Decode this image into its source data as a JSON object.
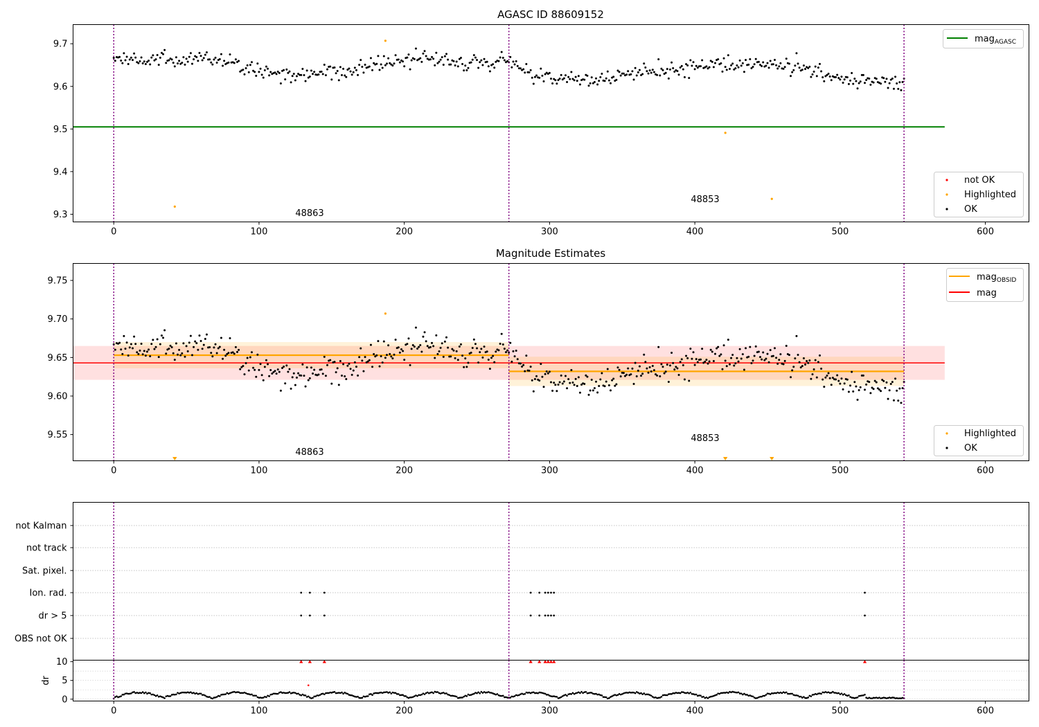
{
  "chart_data": [
    {
      "type": "scatter",
      "title": "AGASC ID 88609152",
      "xlim": [
        -28,
        630
      ],
      "ylim": [
        9.282,
        9.745
      ],
      "x_ticks": [
        0,
        100,
        200,
        300,
        400,
        500,
        600
      ],
      "y_ticks": [
        9.3,
        9.4,
        9.5,
        9.6,
        9.7
      ],
      "obs_boundaries": [
        0,
        272,
        544
      ],
      "observations": [
        {
          "obsid": "48863",
          "x": 271,
          "y": 9.297,
          "start": 0,
          "end": 272
        },
        {
          "obsid": "48853",
          "x": 272,
          "y": 9.331,
          "start": 272,
          "end": 544
        }
      ],
      "reference_line": {
        "name": "mag_{AGASC}",
        "value": 9.505,
        "x_range": [
          -28,
          572
        ],
        "color": "#008000"
      },
      "highlighted_points": [
        {
          "x": 42,
          "y": 9.318
        },
        {
          "x": 187,
          "y": 9.707
        },
        {
          "x": 421,
          "y": 9.491
        },
        {
          "x": 453,
          "y": 9.336
        }
      ],
      "ok_trend": {
        "segment_1": {
          "x_range": [
            0,
            271
          ],
          "knots": [
            [
              0,
              9.66
            ],
            [
              30,
              9.665
            ],
            [
              60,
              9.663
            ],
            [
              90,
              9.648
            ],
            [
              110,
              9.63
            ],
            [
              140,
              9.628
            ],
            [
              180,
              9.65
            ],
            [
              210,
              9.665
            ],
            [
              240,
              9.655
            ],
            [
              271,
              9.662
            ]
          ]
        },
        "segment_2": {
          "x_range": [
            272,
            544
          ],
          "knots": [
            [
              272,
              9.66
            ],
            [
              290,
              9.623
            ],
            [
              330,
              9.612
            ],
            [
              360,
              9.63
            ],
            [
              390,
              9.64
            ],
            [
              420,
              9.655
            ],
            [
              450,
              9.652
            ],
            [
              470,
              9.645
            ],
            [
              490,
              9.625
            ],
            [
              515,
              9.615
            ],
            [
              544,
              9.607
            ]
          ]
        },
        "noise": 0.012
      },
      "legend": {
        "upper_right": [
          "mag_{AGASC}"
        ],
        "lower_right": [
          "not OK",
          "Highlighted",
          "OK"
        ]
      },
      "colors": {
        "ok": "#000000",
        "highlighted": "#ffa500",
        "not_ok": "#ff0000",
        "boundary": "#800080"
      }
    },
    {
      "type": "scatter",
      "title": "Magnitude Estimates",
      "xlim": [
        -28,
        630
      ],
      "ylim": [
        9.516,
        9.772
      ],
      "x_ticks": [
        0,
        100,
        200,
        300,
        400,
        500,
        600
      ],
      "y_ticks": [
        9.55,
        9.6,
        9.65,
        9.7,
        9.75
      ],
      "obs_boundaries": [
        0,
        272,
        544
      ],
      "observations": [
        {
          "obsid": "48863",
          "x": 271,
          "y": 9.523,
          "mag_obsid": 9.653,
          "mag_obsid_err": 0.017,
          "start": 0,
          "end": 272
        },
        {
          "obsid": "48853",
          "x": 272,
          "y": 9.542,
          "mag_obsid": 9.632,
          "mag_obsid_err": 0.019,
          "start": 272,
          "end": 544
        }
      ],
      "mag": {
        "value": 9.643,
        "err": 0.022,
        "x_range": [
          -28,
          572
        ]
      },
      "highlighted_points": [
        {
          "x": 187,
          "y": 9.707
        }
      ],
      "out_of_range_markers": [
        {
          "x": 42
        },
        {
          "x": 421
        },
        {
          "x": 453
        }
      ],
      "legend": {
        "upper_right": [
          "mag_{OBSID}",
          "mag"
        ],
        "lower_right": [
          "Highlighted",
          "OK"
        ]
      },
      "colors": {
        "mag_obsid": "#ffa500",
        "mag": "#ff0000",
        "ok": "#000000",
        "highlighted": "#ffa500",
        "boundary": "#800080"
      }
    },
    {
      "type": "scatter",
      "title": "",
      "xlim": [
        -28,
        630
      ],
      "categories": [
        "not Kalman",
        "not track",
        "Sat. pixel.",
        "Ion. rad.",
        "dr > 5",
        "OBS not OK"
      ],
      "flagged_x": [
        129,
        135,
        145,
        287,
        293,
        297,
        299,
        301,
        303,
        517
      ],
      "obs_boundaries": [
        0,
        272,
        544
      ]
    },
    {
      "type": "scatter",
      "title": "",
      "ylabel": "dr",
      "xlim": [
        -28,
        630
      ],
      "ylim": [
        -0.5,
        10.4
      ],
      "y_ticks": [
        0,
        5,
        10
      ],
      "x_ticks": [
        0,
        100,
        200,
        300,
        400,
        500,
        600
      ],
      "obs_boundaries": [
        0,
        272,
        544
      ],
      "clipped_points": [
        129,
        135,
        145,
        287,
        293,
        297,
        299,
        301,
        303,
        517
      ],
      "outliers": [
        {
          "x": 134,
          "y": 3.7
        }
      ],
      "colors": {
        "ok": "#000000",
        "clipped": "#ff0000",
        "boundary": "#800080"
      }
    }
  ]
}
